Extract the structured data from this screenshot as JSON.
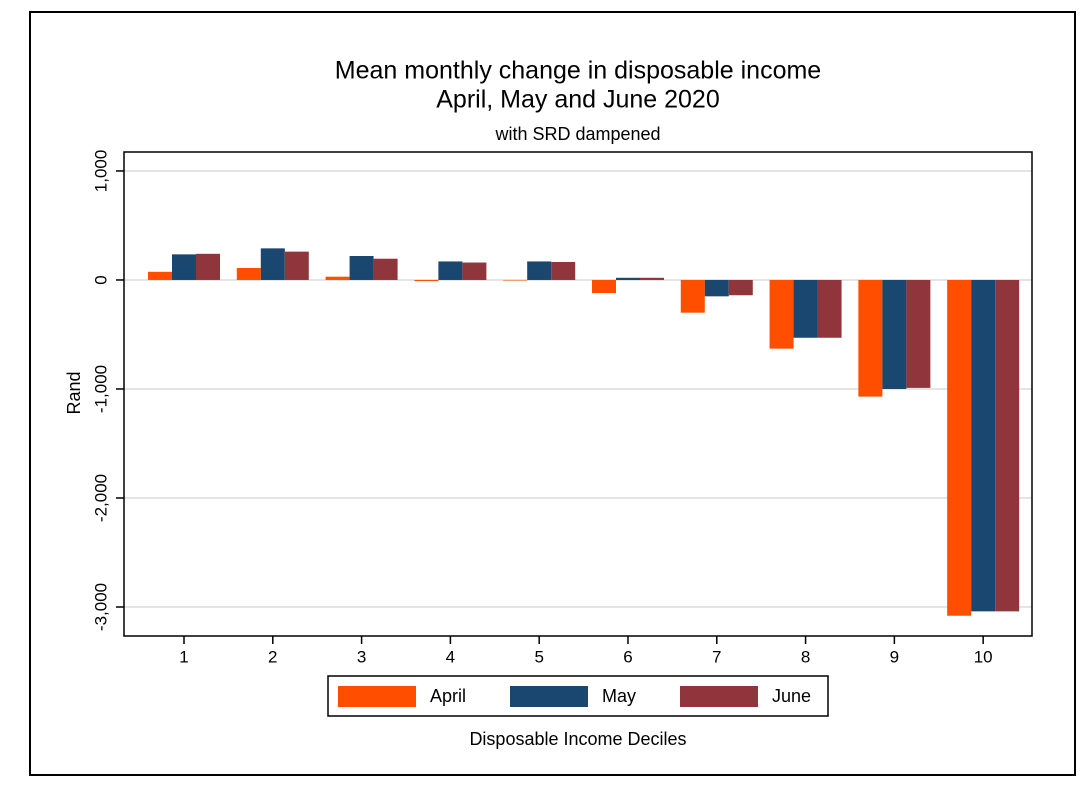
{
  "chart_data": {
    "type": "bar",
    "title": "Mean monthly change in disposable income",
    "title_line2": "April, May and June 2020",
    "subtitle": "with SRD dampened",
    "x_label": "Disposable Income Deciles",
    "y_label": "Rand",
    "categories": [
      "1",
      "2",
      "3",
      "4",
      "5",
      "6",
      "7",
      "8",
      "9",
      "10"
    ],
    "series": [
      {
        "name": "April",
        "color": "#ff4e00",
        "values": [
          75,
          110,
          30,
          -10,
          -5,
          -120,
          -300,
          -630,
          -1070,
          -3080
        ]
      },
      {
        "name": "May",
        "color": "#1a476f",
        "values": [
          235,
          290,
          220,
          170,
          170,
          20,
          -150,
          -530,
          -1000,
          -3040
        ]
      },
      {
        "name": "June",
        "color": "#90353b",
        "values": [
          240,
          260,
          195,
          160,
          165,
          20,
          -140,
          -530,
          -990,
          -3040
        ]
      }
    ],
    "ylim": [
      -3266,
      1174
    ],
    "yticks": [
      {
        "value": -3000,
        "label": "-3,000"
      },
      {
        "value": -2000,
        "label": "-2,000"
      },
      {
        "value": -1000,
        "label": "-1,000"
      },
      0,
      {
        "value": 1000,
        "label": "1,000"
      }
    ],
    "grid": true,
    "legend": "bottom"
  }
}
